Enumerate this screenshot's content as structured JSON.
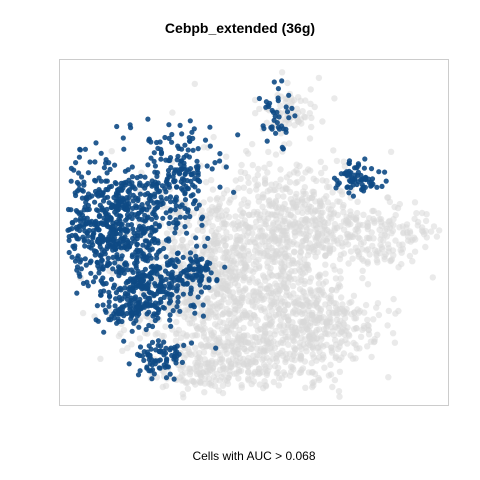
{
  "chart_data": {
    "type": "scatter",
    "title": "Cebpb_extended (36g)",
    "xlabel": "Cells with AUC > 0.068",
    "ylabel": "",
    "threshold": 0.068,
    "grid": false,
    "axes_visible": false,
    "series": [
      {
        "name": "",
        "color": "#d8d8d8",
        "clusters": [
          {
            "cx": 0.42,
            "cy": 0.6,
            "rx": 0.23,
            "ry": 0.24,
            "n": 900
          },
          {
            "cx": 0.5,
            "cy": 0.84,
            "rx": 0.24,
            "ry": 0.12,
            "n": 420
          },
          {
            "cx": 0.66,
            "cy": 0.75,
            "rx": 0.13,
            "ry": 0.1,
            "n": 260
          },
          {
            "cx": 0.62,
            "cy": 0.48,
            "rx": 0.15,
            "ry": 0.18,
            "n": 400
          },
          {
            "cx": 0.83,
            "cy": 0.51,
            "rx": 0.15,
            "ry": 0.08,
            "n": 170
          },
          {
            "cx": 0.58,
            "cy": 0.15,
            "rx": 0.07,
            "ry": 0.07,
            "n": 70
          },
          {
            "cx": 0.35,
            "cy": 0.91,
            "rx": 0.09,
            "ry": 0.05,
            "n": 60
          }
        ]
      },
      {
        "name": "",
        "color": "#0e4a85",
        "clusters": [
          {
            "cx": 0.14,
            "cy": 0.48,
            "rx": 0.12,
            "ry": 0.17,
            "n": 600
          },
          {
            "cx": 0.3,
            "cy": 0.34,
            "rx": 0.09,
            "ry": 0.13,
            "n": 180
          },
          {
            "cx": 0.24,
            "cy": 0.65,
            "rx": 0.1,
            "ry": 0.08,
            "n": 190
          },
          {
            "cx": 0.26,
            "cy": 0.86,
            "rx": 0.06,
            "ry": 0.05,
            "n": 80
          },
          {
            "cx": 0.34,
            "cy": 0.61,
            "rx": 0.06,
            "ry": 0.07,
            "n": 90
          },
          {
            "cx": 0.18,
            "cy": 0.72,
            "rx": 0.07,
            "ry": 0.05,
            "n": 90
          },
          {
            "cx": 0.77,
            "cy": 0.34,
            "rx": 0.05,
            "ry": 0.04,
            "n": 70
          },
          {
            "cx": 0.56,
            "cy": 0.16,
            "rx": 0.04,
            "ry": 0.08,
            "n": 40
          }
        ]
      }
    ]
  }
}
